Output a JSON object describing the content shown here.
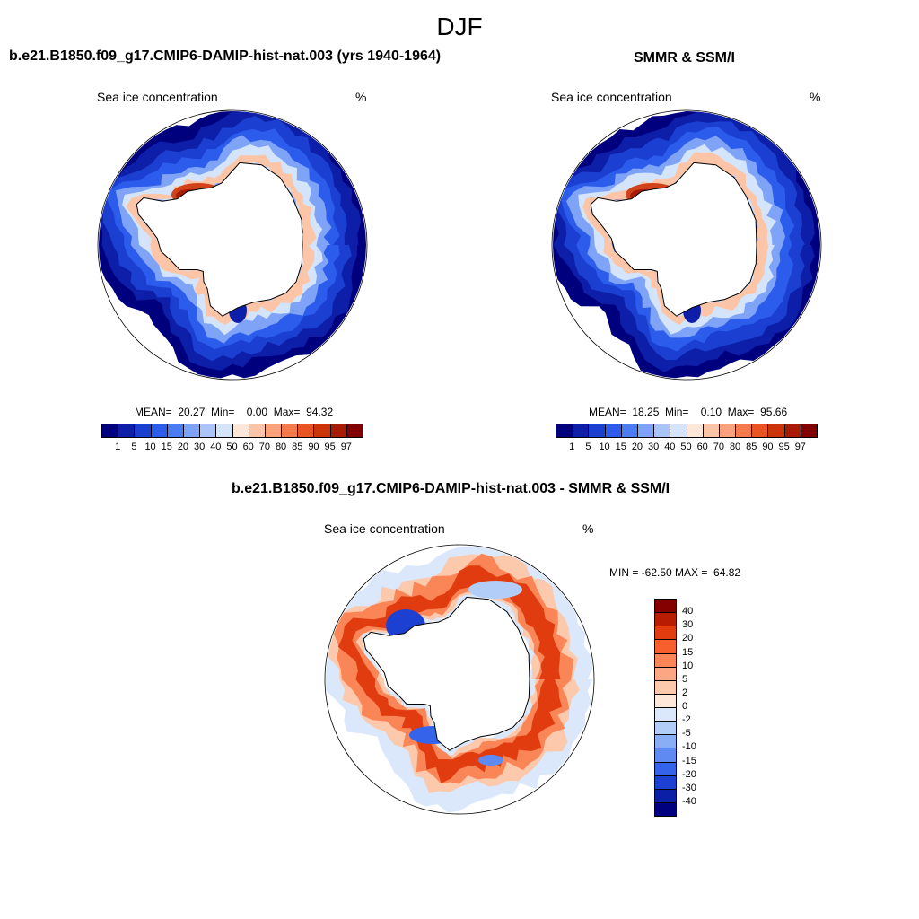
{
  "figure": {
    "title": "DJF"
  },
  "panels": [
    {
      "title": "b.e21.B1850.f09_g17.CMIP6-DAMIP-hist-nat.003 (yrs 1940-1964)",
      "var_label": "Sea ice concentration",
      "unit": "%",
      "stats_text": "MEAN=  20.27  Min=    0.00  Max=  94.32"
    },
    {
      "title": "SMMR & SSM/I",
      "var_label": "Sea ice concentration",
      "unit": "%",
      "stats_text": "MEAN=  18.25  Min=    0.10  Max=  95.66"
    },
    {
      "title": "b.e21.B1850.f09_g17.CMIP6-DAMIP-hist-nat.003 - SMMR & SSM/I",
      "var_label": "Sea ice concentration",
      "unit": "%",
      "stats_text": "MIN = -62.50 MAX =  64.82"
    }
  ],
  "chart_data": [
    {
      "type": "heatmap",
      "projection": "south-polar-stereographic",
      "title": "b.e21.B1850.f09_g17.CMIP6-DAMIP-hist-nat.003 (yrs 1940-1964)",
      "variable": "Sea ice concentration",
      "units": "%",
      "mean": 20.27,
      "min": 0.0,
      "max": 94.32,
      "colorbar": {
        "orientation": "horizontal",
        "levels": [
          "1",
          "5",
          "10",
          "15",
          "20",
          "30",
          "40",
          "50",
          "60",
          "70",
          "80",
          "85",
          "90",
          "95",
          "97"
        ],
        "colors": [
          "#00007f",
          "#0d1fa8",
          "#1a3fd1",
          "#2c5cec",
          "#4a7cf4",
          "#7fa4f7",
          "#aac4f9",
          "#d3e4fb",
          "#fde7d8",
          "#fcc5a8",
          "#faa27b",
          "#f57b4f",
          "#ea5424",
          "#cc3308",
          "#a71b04",
          "#840000"
        ]
      }
    },
    {
      "type": "heatmap",
      "projection": "south-polar-stereographic",
      "title": "SMMR & SSM/I",
      "variable": "Sea ice concentration",
      "units": "%",
      "mean": 18.25,
      "min": 0.1,
      "max": 95.66,
      "colorbar": {
        "orientation": "horizontal",
        "levels": [
          "1",
          "5",
          "10",
          "15",
          "20",
          "30",
          "40",
          "50",
          "60",
          "70",
          "80",
          "85",
          "90",
          "95",
          "97"
        ],
        "colors": [
          "#00007f",
          "#0d1fa8",
          "#1a3fd1",
          "#2c5cec",
          "#4a7cf4",
          "#7fa4f7",
          "#aac4f9",
          "#d3e4fb",
          "#fde7d8",
          "#fcc5a8",
          "#faa27b",
          "#f57b4f",
          "#ea5424",
          "#cc3308",
          "#a71b04",
          "#840000"
        ]
      }
    },
    {
      "type": "heatmap",
      "projection": "south-polar-stereographic",
      "title": "b.e21.B1850.f09_g17.CMIP6-DAMIP-hist-nat.003 - SMMR & SSM/I",
      "variable": "Sea ice concentration",
      "units": "%",
      "min": -62.5,
      "max": 64.82,
      "colorbar": {
        "orientation": "vertical",
        "levels": [
          "40",
          "30",
          "20",
          "15",
          "10",
          "5",
          "2",
          "0",
          "-2",
          "-5",
          "-10",
          "-15",
          "-20",
          "-30",
          "-40"
        ],
        "colors": [
          "#840000",
          "#b81c03",
          "#e03c10",
          "#f75f2c",
          "#fa8657",
          "#fba784",
          "#fcc9ad",
          "#fde7d8",
          "#dbe8fb",
          "#b3cdf9",
          "#8aaef6",
          "#5e8af1",
          "#3564ea",
          "#1c40d2",
          "#0b1fa6",
          "#00007f"
        ]
      }
    }
  ]
}
